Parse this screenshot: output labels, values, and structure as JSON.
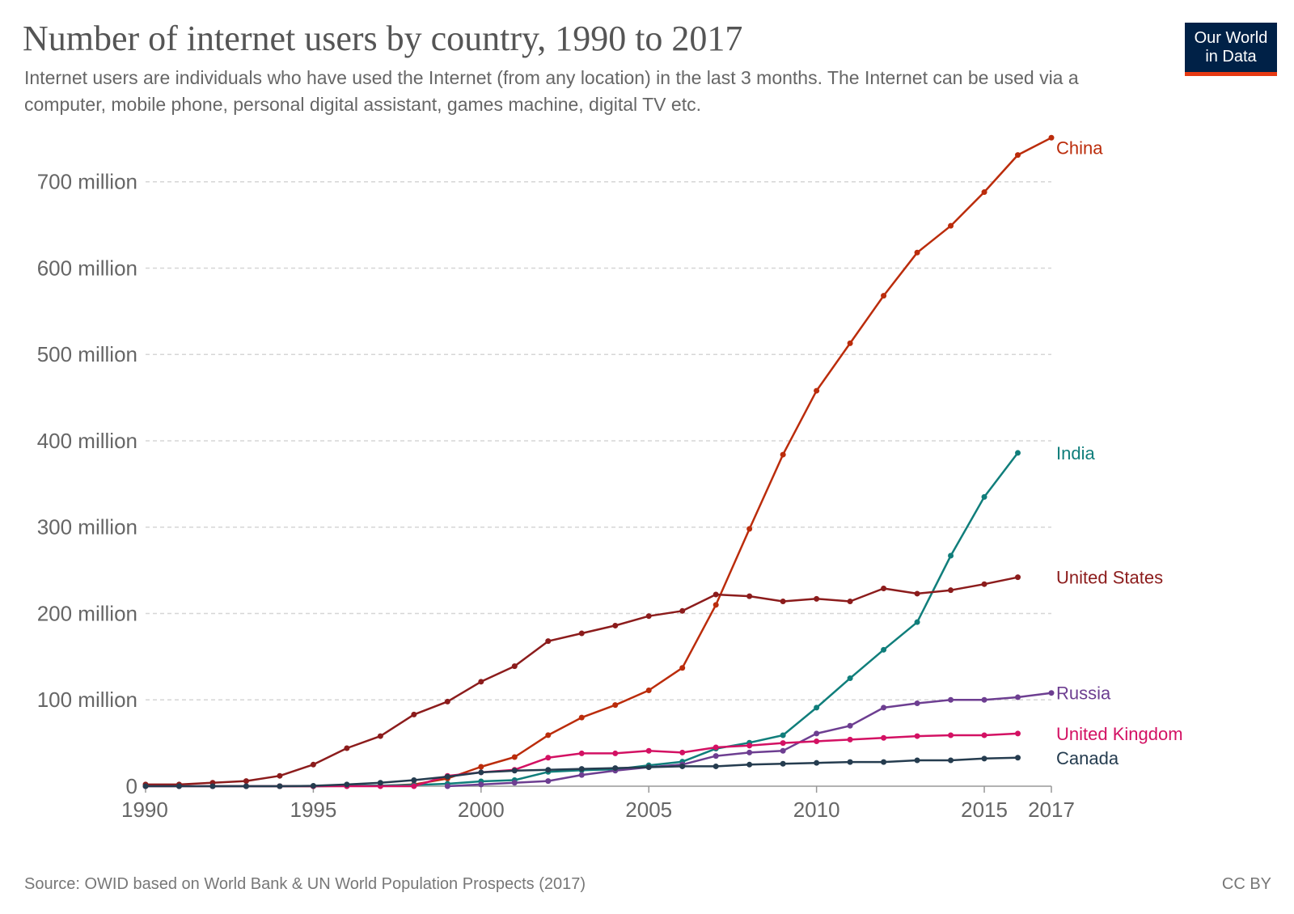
{
  "header": {
    "title": "Number of internet users by country, 1990 to 2017",
    "subtitle": "Internet users are individuals who have used the Internet (from any location) in the last 3 months. The Internet can be used via a computer, mobile phone, personal digital assistant, games machine, digital TV etc.",
    "logo_line1": "Our World",
    "logo_line2": "in Data",
    "logo_bg": "#002147",
    "logo_accent": "#e63912"
  },
  "footer": {
    "source": "Source: OWID based on World Bank & UN World Population Prospects (2017)",
    "license": "CC BY"
  },
  "chart_data": {
    "type": "line",
    "title": "Number of internet users by country, 1990 to 2017",
    "xlabel": "",
    "ylabel": "",
    "xlim": [
      1990,
      2017
    ],
    "ylim": [
      0,
      770
    ],
    "grid": true,
    "legend": "labels at line ends (right)",
    "x_ticks": [
      {
        "value": 1990,
        "label": "1990"
      },
      {
        "value": 1995,
        "label": "1995"
      },
      {
        "value": 2000,
        "label": "2000"
      },
      {
        "value": 2005,
        "label": "2005"
      },
      {
        "value": 2010,
        "label": "2010"
      },
      {
        "value": 2015,
        "label": "2015"
      },
      {
        "value": 2017,
        "label": "2017"
      }
    ],
    "y_ticks": [
      {
        "value": 0,
        "label": "0"
      },
      {
        "value": 100,
        "label": "100 million"
      },
      {
        "value": 200,
        "label": "200 million"
      },
      {
        "value": 300,
        "label": "300 million"
      },
      {
        "value": 400,
        "label": "400 million"
      },
      {
        "value": 500,
        "label": "500 million"
      },
      {
        "value": 600,
        "label": "600 million"
      },
      {
        "value": 700,
        "label": "700 million"
      }
    ],
    "units": "million",
    "series": [
      {
        "name": "China",
        "color": "#bb2c0b",
        "x": [
          1994,
          1995,
          1996,
          1997,
          1998,
          1999,
          2000,
          2001,
          2002,
          2003,
          2004,
          2005,
          2006,
          2007,
          2008,
          2009,
          2010,
          2011,
          2012,
          2013,
          2014,
          2015,
          2016,
          2017
        ],
        "values": [
          0,
          0,
          0.2,
          0.4,
          2.1,
          8.9,
          22.5,
          33.7,
          59.1,
          79.5,
          94,
          111,
          137,
          210,
          298,
          384,
          458,
          513,
          568,
          618,
          649,
          688,
          731,
          751
        ]
      },
      {
        "name": "India",
        "color": "#107e7b",
        "x": [
          1992,
          1993,
          1994,
          1995,
          1996,
          1997,
          1998,
          1999,
          2000,
          2001,
          2002,
          2003,
          2004,
          2005,
          2006,
          2007,
          2008,
          2009,
          2010,
          2011,
          2012,
          2013,
          2014,
          2015,
          2016
        ],
        "values": [
          0,
          0,
          0,
          0,
          0.5,
          0.7,
          1.4,
          2.8,
          5.6,
          7.0,
          16.6,
          18.5,
          19.6,
          24.2,
          28.4,
          43.5,
          50.4,
          59,
          91,
          125,
          158,
          190,
          267,
          335,
          386
        ]
      },
      {
        "name": "United States",
        "color": "#8c1c1c",
        "x": [
          1990,
          1991,
          1992,
          1993,
          1994,
          1995,
          1996,
          1997,
          1998,
          1999,
          2000,
          2001,
          2002,
          2003,
          2004,
          2005,
          2006,
          2007,
          2008,
          2009,
          2010,
          2011,
          2012,
          2013,
          2014,
          2015,
          2016
        ],
        "values": [
          2,
          2,
          4,
          6,
          12,
          25,
          44,
          58,
          83,
          98,
          121,
          139,
          168,
          177,
          186,
          197,
          203,
          222,
          220,
          214,
          217,
          214,
          229,
          223,
          227,
          234,
          242
        ]
      },
      {
        "name": "Russia",
        "color": "#6d3e91",
        "x": [
          1999,
          2000,
          2001,
          2002,
          2003,
          2004,
          2005,
          2006,
          2007,
          2008,
          2009,
          2010,
          2011,
          2012,
          2013,
          2014,
          2015,
          2016,
          2017
        ],
        "values": [
          0,
          2,
          4,
          6,
          13,
          18,
          22,
          25,
          35,
          39,
          41,
          61,
          70,
          91,
          96,
          100,
          100,
          103,
          108
        ]
      },
      {
        "name": "United Kingdom",
        "color": "#d31163",
        "x": [
          1990,
          1991,
          1992,
          1993,
          1994,
          1995,
          1996,
          1997,
          1998,
          1999,
          2000,
          2001,
          2002,
          2003,
          2004,
          2005,
          2006,
          2007,
          2008,
          2009,
          2010,
          2011,
          2012,
          2013,
          2014,
          2015,
          2016
        ],
        "values": [
          0,
          0,
          0,
          0,
          0,
          0,
          0,
          0,
          0,
          12,
          16,
          19,
          33,
          38,
          38,
          41,
          39,
          45,
          47,
          50,
          52,
          54,
          56,
          58,
          59,
          59,
          61
        ]
      },
      {
        "name": "Canada",
        "color": "#253c4f",
        "x": [
          1990,
          1991,
          1992,
          1993,
          1994,
          1995,
          1996,
          1997,
          1998,
          1999,
          2000,
          2001,
          2002,
          2003,
          2004,
          2005,
          2006,
          2007,
          2008,
          2009,
          2010,
          2011,
          2012,
          2013,
          2014,
          2015,
          2016
        ],
        "values": [
          0,
          0,
          0,
          0,
          0,
          0.5,
          2,
          4,
          7,
          11,
          16,
          18,
          19,
          20,
          21,
          22,
          23,
          23,
          25,
          26,
          27,
          28,
          28,
          30,
          30,
          32,
          33
        ]
      }
    ]
  }
}
